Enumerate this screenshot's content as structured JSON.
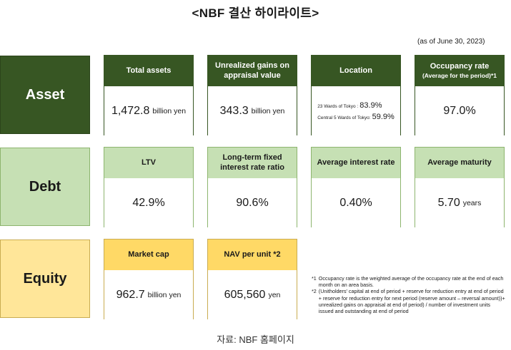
{
  "title": "<NBF 결산 하이라이트>",
  "as_of": "(as of June 30, 2023)",
  "categories": {
    "asset": "Asset",
    "debt": "Debt",
    "equity": "Equity"
  },
  "asset": {
    "total_assets": {
      "label": "Total assets",
      "value": "1,472.8",
      "unit": "billion yen"
    },
    "unrealized_gains": {
      "label": "Unrealized gains on appraisal value",
      "value": "343.3",
      "unit": "billion yen"
    },
    "location": {
      "label": "Location",
      "rows": [
        {
          "area": "23 Wards of Tokyo :",
          "pct": "83.9%"
        },
        {
          "area": "Central 5 Wards of Tokyo:",
          "pct": "59.9%"
        }
      ]
    },
    "occupancy": {
      "label": "Occupancy rate",
      "sub": "(Average for the period)*1",
      "value": "97.0%"
    }
  },
  "debt": {
    "ltv": {
      "label": "LTV",
      "value": "42.9%"
    },
    "fixed_ratio": {
      "label": "Long-term fixed interest rate ratio",
      "value": "90.6%"
    },
    "avg_rate": {
      "label": "Average interest rate",
      "value": "0.40%"
    },
    "avg_maturity": {
      "label": "Average maturity",
      "value": "5.70",
      "unit": "years"
    }
  },
  "equity": {
    "market_cap": {
      "label": "Market cap",
      "value": "962.7",
      "unit": "billion yen"
    },
    "nav": {
      "label": "NAV per unit *2",
      "value": "605,560",
      "unit": "yen"
    }
  },
  "notes": [
    {
      "key": "*1",
      "text": "Occupancy rate is the weighted average of the occupancy rate at the end of each month on an area basis."
    },
    {
      "key": "*2",
      "text": "(Unitholders' capital at end of period + reserve for reduction entry at end of period + reserve for reduction entry for next period (reserve amount – reversal amount))+ unrealized gains on appraisal at end of period) / number of investment units issued and outstanding at end of period"
    }
  ],
  "source": "자료: NBF 홈페이지"
}
